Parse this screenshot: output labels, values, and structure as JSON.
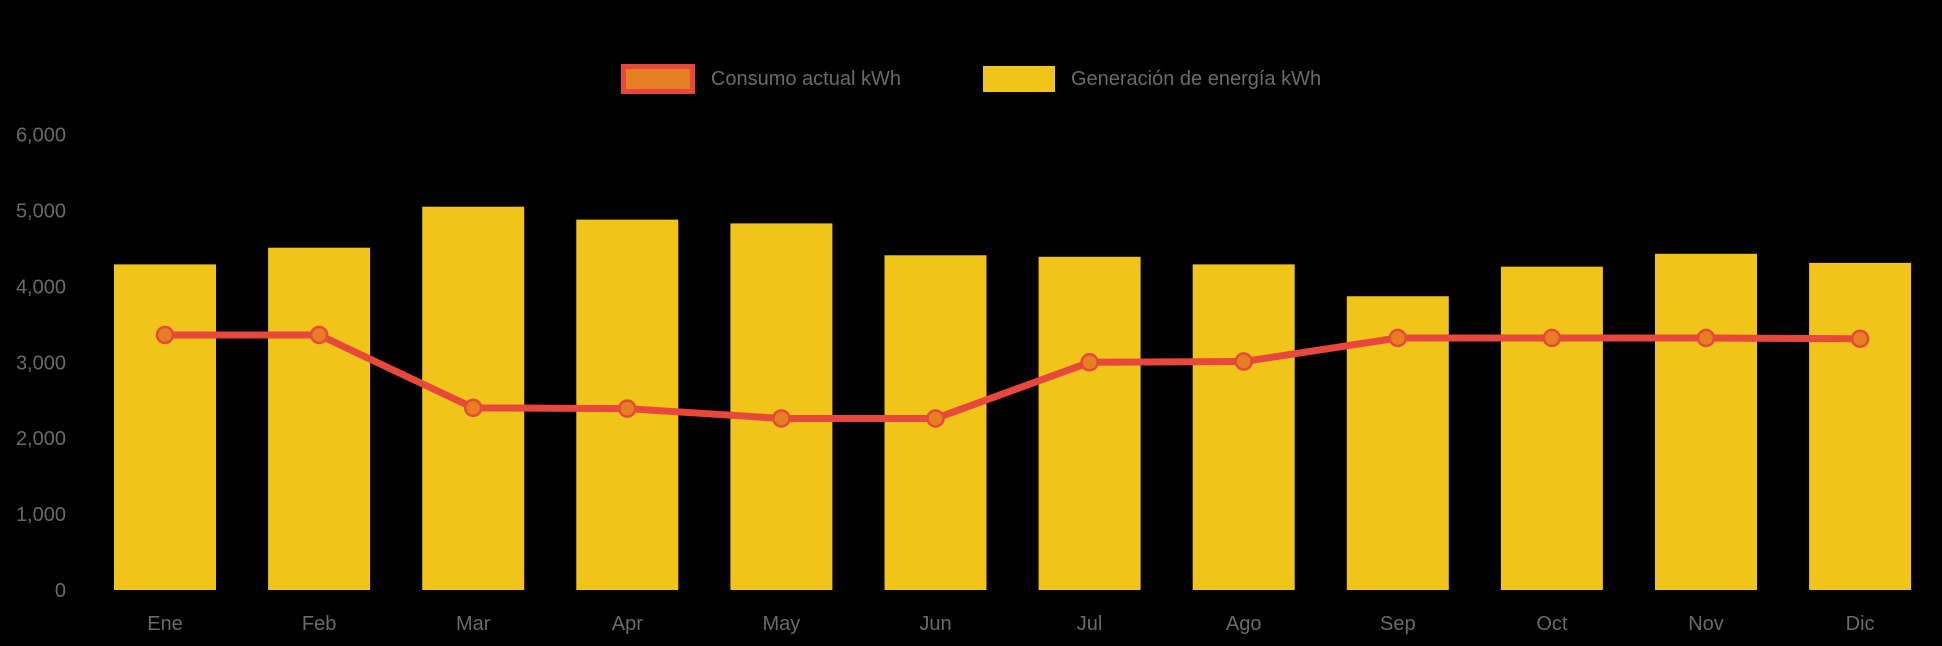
{
  "legend": {
    "items": [
      {
        "id": "consumo",
        "label": "Consumo actual kWh",
        "swatch_fill": "#e67e22",
        "swatch_border": "#e8483c"
      },
      {
        "id": "generacion",
        "label": "Generación de energía kWh",
        "swatch_fill": "#f0c419",
        "swatch_border": "#f0c419"
      }
    ]
  },
  "colors": {
    "background": "#000000",
    "bar_yellow": "#f0c419",
    "line_red": "#e8483c",
    "marker_orange": "#e67e22",
    "axis_text": "#6a6a6a"
  },
  "chart_data": {
    "type": "bar+line",
    "title": "",
    "xlabel": "",
    "ylabel": "",
    "categories": [
      "Ene",
      "Feb",
      "Mar",
      "Apr",
      "May",
      "Jun",
      "Jul",
      "Ago",
      "Sep",
      "Oct",
      "Nov",
      "Dic"
    ],
    "series": [
      {
        "name": "Generación de energía kWh",
        "type": "bar",
        "color": "#f0c419",
        "values": [
          4290,
          4510,
          5050,
          4880,
          4830,
          4410,
          4390,
          4290,
          3870,
          4260,
          4430,
          4310
        ]
      },
      {
        "name": "Consumo actual kWh",
        "type": "line",
        "color": "#e8483c",
        "marker_fill": "#e67e22",
        "values": [
          3360,
          3360,
          2400,
          2390,
          2260,
          2260,
          3000,
          3010,
          3320,
          3320,
          3320,
          3310
        ]
      }
    ],
    "ylim": [
      0,
      6000
    ],
    "yticks": [
      0,
      1000,
      2000,
      3000,
      4000,
      5000,
      6000
    ],
    "ytick_labels": [
      "0",
      "1,000",
      "2,000",
      "3,000",
      "4,000",
      "5,000",
      "6,000"
    ],
    "grid": false,
    "legend_position": "top-center"
  }
}
